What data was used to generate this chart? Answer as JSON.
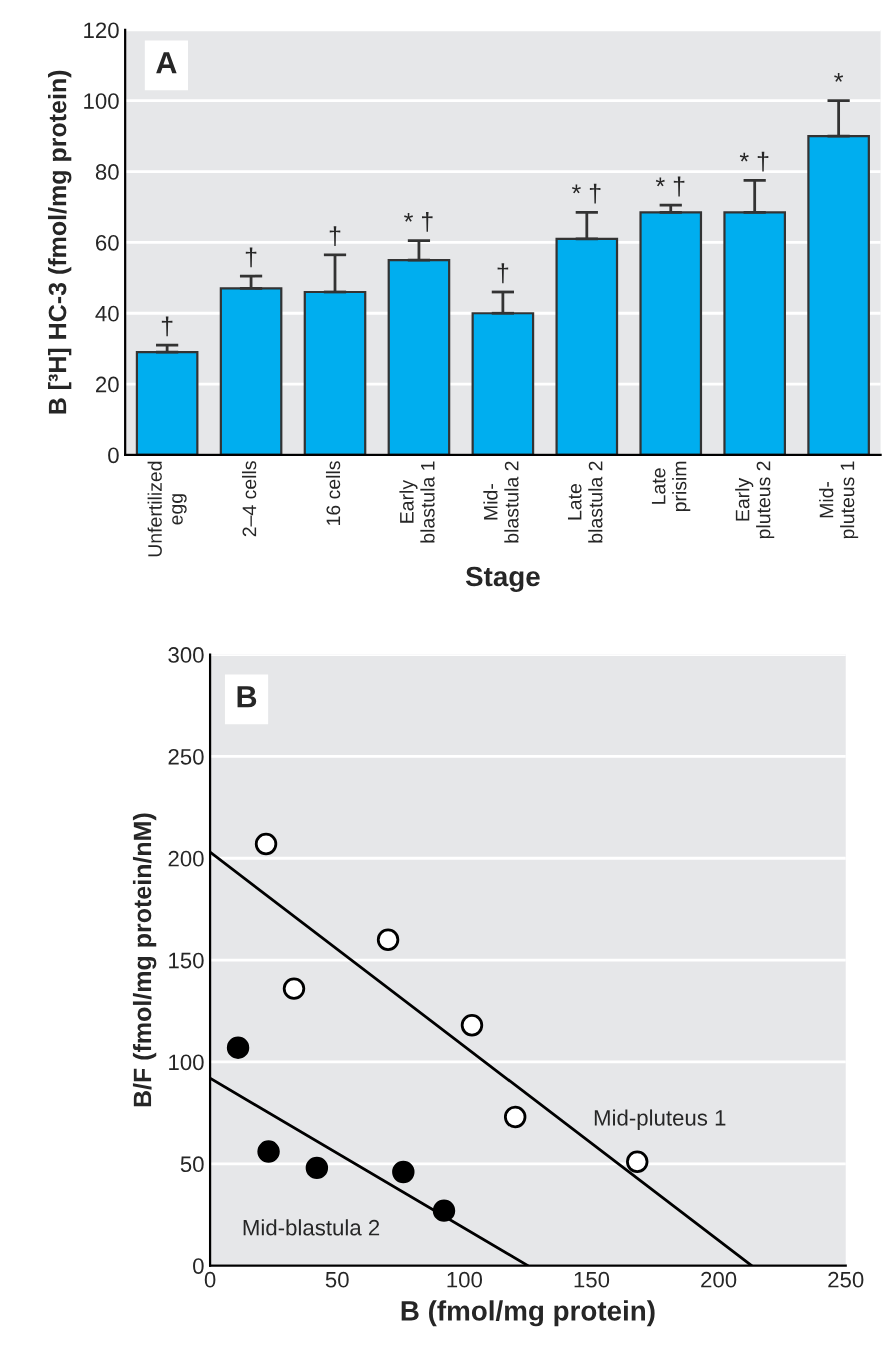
{
  "chart_data": [
    {
      "type": "bar",
      "xlabel": "Stage",
      "ylabel": "B [³H] HC-3 (fmol/mg protein)",
      "categories": [
        "Unfertilized\negg",
        "2–4 cells",
        "16 cells",
        "Early\nblastula 1",
        "Mid-\nblastula 2",
        "Late\nblastula 2",
        "Late\nprisim",
        "Early\npluteus 2",
        "Mid-\npluteus 1"
      ],
      "values": [
        29,
        47,
        46,
        55,
        40,
        61,
        68.5,
        68.5,
        90
      ],
      "errors": [
        [
          29,
          31
        ],
        [
          47,
          50.5
        ],
        [
          46,
          56.5
        ],
        [
          55,
          60.5
        ],
        [
          40,
          46
        ],
        [
          61,
          68.5
        ],
        [
          68.5,
          70.5
        ],
        [
          68.5,
          77.5
        ],
        [
          90,
          100
        ]
      ],
      "color": "#00aeef",
      "ylim": [
        0,
        120
      ],
      "yticks": [
        0,
        20,
        40,
        60,
        80,
        100,
        120
      ],
      "grid": "y",
      "annotations": [
        "A",
        {
          "text": "†",
          "x": "Unfertilized\negg",
          "y": 31
        },
        {
          "text": "†",
          "x": "2–4 cells",
          "y": 50.5
        },
        {
          "text": "†",
          "x": "16 cells",
          "y": 56.5
        },
        {
          "text": "* †",
          "x": "Early\nblastula 1",
          "y": 60.5
        },
        {
          "text": "†",
          "x": "Mid-\nblastula 2",
          "y": 46
        },
        {
          "text": "* †",
          "x": "Late\nblastula 2",
          "y": 68.5
        },
        {
          "text": "* †",
          "x": "Late\nprisim",
          "y": 70.5
        },
        {
          "text": "* †",
          "x": "Early\npluteus 2",
          "y": 77.5
        },
        {
          "text": "*",
          "x": "Mid-\npluteus 1",
          "y": 100
        }
      ]
    },
    {
      "type": "scatter",
      "xlabel": "B (fmol/mg protein)",
      "ylabel": "B/F (fmol/mg protein/nM)",
      "series": [
        {
          "type": "scatter",
          "color": "#ffffff",
          "marker": "circle",
          "x": [
            22,
            33,
            70,
            103,
            120,
            168
          ],
          "values": [
            207,
            136,
            160,
            118,
            73,
            51
          ]
        },
        {
          "type": "scatter",
          "color": "#000000",
          "marker": "circle",
          "x": [
            11,
            23,
            42,
            76,
            92
          ],
          "values": [
            107,
            56,
            48,
            46,
            27
          ]
        },
        {
          "type": "line",
          "name": "Mid-pluteus 1",
          "color": "#000000",
          "x": [
            0,
            213
          ],
          "values": [
            203,
            0
          ]
        },
        {
          "type": "line",
          "name": "Mid-blastula 2",
          "color": "#000000",
          "x": [
            0,
            125
          ],
          "values": [
            92,
            0
          ]
        }
      ],
      "xlim": [
        0,
        250
      ],
      "xticks": [
        0,
        50,
        100,
        150,
        200,
        250
      ],
      "ylim": [
        0,
        300
      ],
      "yticks": [
        0,
        50,
        100,
        150,
        200,
        250,
        300
      ],
      "grid": "y",
      "annotations": [
        "B"
      ]
    }
  ]
}
